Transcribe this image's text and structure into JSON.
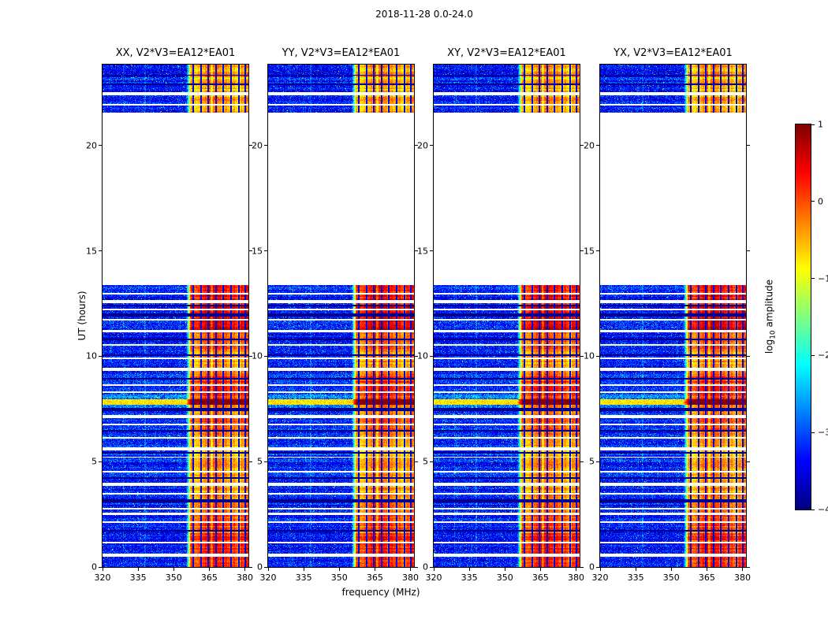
{
  "chart_data": {
    "type": "heatmap",
    "title": "2018-11-28 0.0-24.0",
    "xlabel": "frequency (MHz)",
    "ylabel": "UT (hours)",
    "colorbar_label": "log10 amplitude",
    "colorbar_label_parts": {
      "pre": "log",
      "sub": "10",
      "post": " amplitude"
    },
    "colormap": "jet",
    "clim": [
      -4,
      1
    ],
    "xlim": [
      320,
      381.5
    ],
    "ylim": [
      0,
      23.85
    ],
    "xticks": [
      320,
      335,
      350,
      365,
      380
    ],
    "yticks": [
      0,
      5,
      10,
      15,
      20
    ],
    "colorbar_ticks": [
      1,
      0,
      -1,
      -2,
      -3,
      -4
    ],
    "panels": [
      {
        "label": "XX, V2*V3=EA12*EA01",
        "seed": 101
      },
      {
        "label": "YY, V2*V3=EA12*EA01",
        "seed": 202
      },
      {
        "label": "XY, V2*V3=EA12*EA01",
        "seed": 303
      },
      {
        "label": "YX, V2*V3=EA12*EA01",
        "seed": 404
      }
    ],
    "data_segments": [
      [
        0.0,
        13.35
      ],
      [
        21.55,
        23.85
      ]
    ],
    "noise_floor_log10": -3.3,
    "rfi_band_start_mhz": 356,
    "rfi_dark_channels_mhz": [
      358.2,
      361.4,
      364.6,
      367.8,
      371.0,
      374.2,
      377.4,
      380.2
    ],
    "rfi_intensity_profile": [
      [
        0.0,
        1.6,
        0.2
      ],
      [
        1.6,
        3.2,
        -0.1
      ],
      [
        3.2,
        4.4,
        -0.3
      ],
      [
        4.4,
        6.2,
        -0.45
      ],
      [
        6.2,
        7.3,
        -0.1
      ],
      [
        7.3,
        7.7,
        -0.3
      ],
      [
        7.7,
        7.95,
        1.0
      ],
      [
        7.95,
        9.1,
        0.1
      ],
      [
        9.1,
        10.2,
        -0.35
      ],
      [
        10.2,
        11.2,
        -0.15
      ],
      [
        11.2,
        12.4,
        0.45
      ],
      [
        12.4,
        13.35,
        0.25
      ],
      [
        21.55,
        23.85,
        -0.55
      ]
    ],
    "bright_event_hours": [
      7.7,
      7.95
    ],
    "gap_hours": [
      0.55,
      1.15,
      2.1,
      2.45,
      2.8,
      3.5,
      3.9,
      4.55,
      5.2,
      5.6,
      6.15,
      6.75,
      7.1,
      8.3,
      8.65,
      9.35,
      9.9,
      10.55,
      11.15,
      11.7,
      12.25,
      12.6,
      13.0,
      21.95,
      22.43
    ],
    "dark_row_hours": [
      1.75,
      3.1,
      4.2,
      5.45,
      6.5,
      7.45,
      8.9,
      10.05,
      10.8,
      11.95,
      12.45,
      22.95,
      23.35
    ],
    "time_bin_hours": 0.07
  }
}
